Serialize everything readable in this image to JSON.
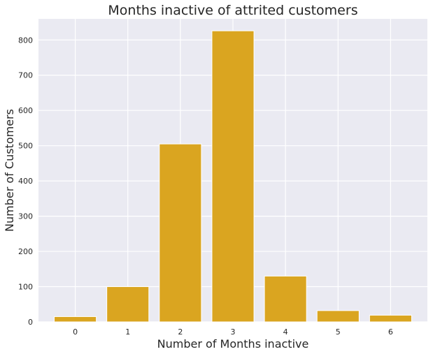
{
  "chart_data": {
    "type": "bar",
    "title": "Months inactive of attrited customers",
    "xlabel": "Number of Months inactive",
    "ylabel": "Number of Customers",
    "categories": [
      "0",
      "1",
      "2",
      "3",
      "4",
      "5",
      "6"
    ],
    "values": [
      15,
      100,
      505,
      826,
      130,
      32,
      19
    ],
    "ylim": [
      0,
      860
    ],
    "yticks": [
      0,
      100,
      200,
      300,
      400,
      500,
      600,
      700,
      800
    ],
    "grid": true,
    "bar_color": "#daa520",
    "background_color": "#eaeaf2"
  }
}
